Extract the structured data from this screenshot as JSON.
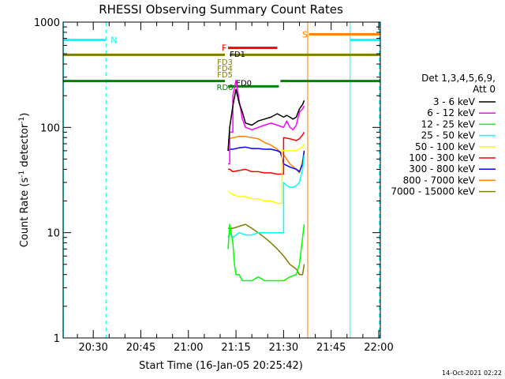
{
  "chart_data": {
    "type": "line",
    "title": "RHESSI Observing Summary Count Rates",
    "xlabel": "Start Time (16-Jan-05 20:25:42)",
    "ylabel_main": "Count Rate (s",
    "ylabel_sup1": "-1",
    "ylabel_mid": " detector",
    "ylabel_sup2": "-1",
    "ylabel_end": ")",
    "y_scale": "log",
    "ylim": [
      1,
      1000
    ],
    "xlim_minutes": [
      20.5,
      120.5
    ],
    "x_ticks": [
      {
        "t": 30,
        "label": "20:30"
      },
      {
        "t": 45,
        "label": "20:45"
      },
      {
        "t": 60,
        "label": "21:00"
      },
      {
        "t": 75,
        "label": "21:15"
      },
      {
        "t": 90,
        "label": "21:30"
      },
      {
        "t": 105,
        "label": "21:45"
      },
      {
        "t": 120,
        "label": "22:00"
      }
    ],
    "y_ticks": [
      {
        "v": 1,
        "label": "1"
      },
      {
        "v": 10,
        "label": "10"
      },
      {
        "v": 100,
        "label": "100"
      },
      {
        "v": 1000,
        "label": "1000"
      }
    ],
    "legend_title_1": "Det 1,3,4,5,6,9,",
    "legend_title_2": "Att 0",
    "series": [
      {
        "name": "3 - 6 keV",
        "color": "#000000",
        "x": [
          72.5,
          73,
          74,
          75,
          76,
          77,
          78,
          80,
          82,
          84,
          86,
          88,
          90,
          91,
          92,
          93,
          94,
          95,
          96,
          96.5
        ],
        "values": [
          60,
          100,
          160,
          230,
          170,
          140,
          110,
          105,
          115,
          120,
          125,
          135,
          125,
          130,
          125,
          120,
          125,
          150,
          165,
          180
        ]
      },
      {
        "name": "6 - 12 keV",
        "color": "#ff00ff",
        "x": [
          72.5,
          73,
          74,
          75,
          76,
          77,
          78,
          80,
          82,
          84,
          86,
          88,
          90,
          91,
          92,
          93,
          94,
          95,
          96,
          96.5
        ],
        "values": [
          45,
          90,
          200,
          280,
          180,
          120,
          100,
          95,
          100,
          105,
          110,
          105,
          100,
          115,
          100,
          95,
          105,
          140,
          150,
          160
        ]
      },
      {
        "name": "12 - 25 keV",
        "color": "#00ff00",
        "x": [
          72.5,
          73,
          74,
          74.5,
          75,
          76,
          77,
          78,
          80,
          82,
          84,
          86,
          88,
          90,
          92,
          94,
          95,
          96,
          96.5
        ],
        "values": [
          7,
          12,
          8,
          5,
          4,
          4,
          3.5,
          3.5,
          3.5,
          3.8,
          3.5,
          3.5,
          3.5,
          3.5,
          3.8,
          4,
          5,
          9,
          12
        ]
      },
      {
        "name": "25 - 50 keV",
        "color": "#00ffff",
        "x": [
          72.5,
          73,
          74,
          75,
          76,
          78,
          80,
          82,
          84,
          86,
          88,
          90,
          91,
          92,
          93,
          94,
          95,
          96,
          96.5
        ],
        "values": [
          9,
          10,
          9,
          9.5,
          10,
          9.5,
          9.5,
          10,
          10,
          10,
          10,
          30,
          28,
          27,
          27,
          28,
          30,
          40,
          55
        ]
      },
      {
        "name": "50 - 100 keV",
        "color": "#ffff00",
        "x": [
          72.5,
          73,
          74,
          76,
          78,
          80,
          82,
          84,
          86,
          88,
          89,
          89.5,
          90,
          92,
          94,
          95,
          96,
          96.5
        ],
        "values": [
          25,
          24,
          23,
          22,
          22,
          21,
          21,
          20,
          20,
          19,
          19,
          62,
          60,
          60,
          60,
          63,
          65,
          70
        ]
      },
      {
        "name": "100 - 300 keV",
        "color": "#ff0000",
        "x": [
          72.5,
          73,
          74,
          76,
          78,
          80,
          82,
          84,
          86,
          88,
          89,
          90,
          92,
          94,
          95,
          96,
          96.5
        ],
        "values": [
          40,
          40,
          38,
          39,
          40,
          38,
          38,
          37,
          37,
          36,
          36,
          80,
          78,
          75,
          78,
          85,
          90
        ]
      },
      {
        "name": "300 - 800 keV",
        "color": "#0000ff",
        "x": [
          72.5,
          73,
          74,
          76,
          78,
          80,
          82,
          84,
          86,
          88,
          89,
          90,
          92,
          94,
          95,
          96,
          96.5
        ],
        "values": [
          60,
          62,
          62,
          64,
          65,
          63,
          63,
          62,
          62,
          60,
          58,
          45,
          42,
          40,
          38,
          45,
          60
        ]
      },
      {
        "name": "800 - 7000 keV",
        "color": "#ff7f00",
        "x": [
          72.5,
          73,
          74,
          76,
          78,
          80,
          82,
          84,
          86,
          88,
          90,
          92,
          94,
          95,
          96,
          96.5
        ],
        "values": [
          75,
          78,
          80,
          82,
          82,
          80,
          78,
          72,
          68,
          62,
          55,
          45,
          40,
          37,
          48,
          60
        ]
      },
      {
        "name": "7000 - 15000 keV",
        "color": "#7f7f00",
        "x": [
          72.5,
          73,
          74,
          76,
          78,
          80,
          82,
          84,
          86,
          88,
          90,
          92,
          94,
          95,
          96,
          96.5
        ],
        "values": [
          11,
          11,
          11,
          11.5,
          12,
          11,
          10,
          9,
          8,
          7,
          6,
          5,
          4.5,
          4,
          4,
          5
        ]
      }
    ],
    "flag_bars": [
      {
        "label": "N",
        "color": "#00ffff",
        "y_log": 2.83,
        "segments": [
          [
            20.5,
            34
          ]
        ],
        "label_t": 36.5
      },
      {
        "label": "N",
        "color": "#00ffff",
        "y_log": 2.83,
        "segments": [
          [
            111,
            121
          ]
        ],
        "label_t": null
      },
      {
        "label": "F",
        "color": "#ff0000",
        "y_log": 2.755,
        "segments": [
          [
            72.5,
            88
          ]
        ],
        "label_t": 71.3
      },
      {
        "label": "S",
        "color": "#ff7f00",
        "y_log": 2.885,
        "segments": [
          [
            98,
            121
          ]
        ],
        "label_t": 96.7
      },
      {
        "label": "",
        "color": "#7f7f00",
        "y_log": 2.69,
        "segments": [
          [
            20.5,
            71.5
          ],
          [
            73,
            121
          ]
        ],
        "label_t": null
      },
      {
        "label": "",
        "color": "#008000",
        "y_log": 2.44,
        "segments": [
          [
            20.5,
            71.5
          ],
          [
            89,
            121
          ]
        ],
        "label_t": null
      },
      {
        "label": "",
        "color": "#008000",
        "y_log": 2.39,
        "segments": [
          [
            72.5,
            88.5
          ]
        ],
        "label_t": null
      }
    ],
    "flag_labels": [
      {
        "text": "FD1",
        "color": "#000000",
        "t": 75.5,
        "y_log": 2.7
      },
      {
        "text": "FD3",
        "color": "#7f7f00",
        "t": 71.5,
        "y_log": 2.625
      },
      {
        "text": "FD4",
        "color": "#7f7f00",
        "t": 71.5,
        "y_log": 2.565
      },
      {
        "text": "FD5",
        "color": "#7f7f00",
        "t": 71.5,
        "y_log": 2.505
      },
      {
        "text": "FD0",
        "color": "#000000",
        "t": 77.5,
        "y_log": 2.425
      },
      {
        "text": "RD6",
        "color": "#008000",
        "t": 71.5,
        "y_log": 2.385
      }
    ],
    "vertical_lines": [
      {
        "t": 20.6,
        "color": "#00ffff",
        "dashed": false
      },
      {
        "t": 34,
        "color": "#00ffff",
        "dashed": true
      },
      {
        "t": 97.6,
        "color": "#ff7f00",
        "dashed": false
      },
      {
        "t": 111,
        "color": "#00ffff",
        "dashed": false
      },
      {
        "t": 120.2,
        "color": "#00ffff",
        "dashed": true
      },
      {
        "t": 120.4,
        "color": "#ff7f00",
        "dashed": true
      }
    ],
    "timestamp": "14-Oct-2021 02:22"
  }
}
